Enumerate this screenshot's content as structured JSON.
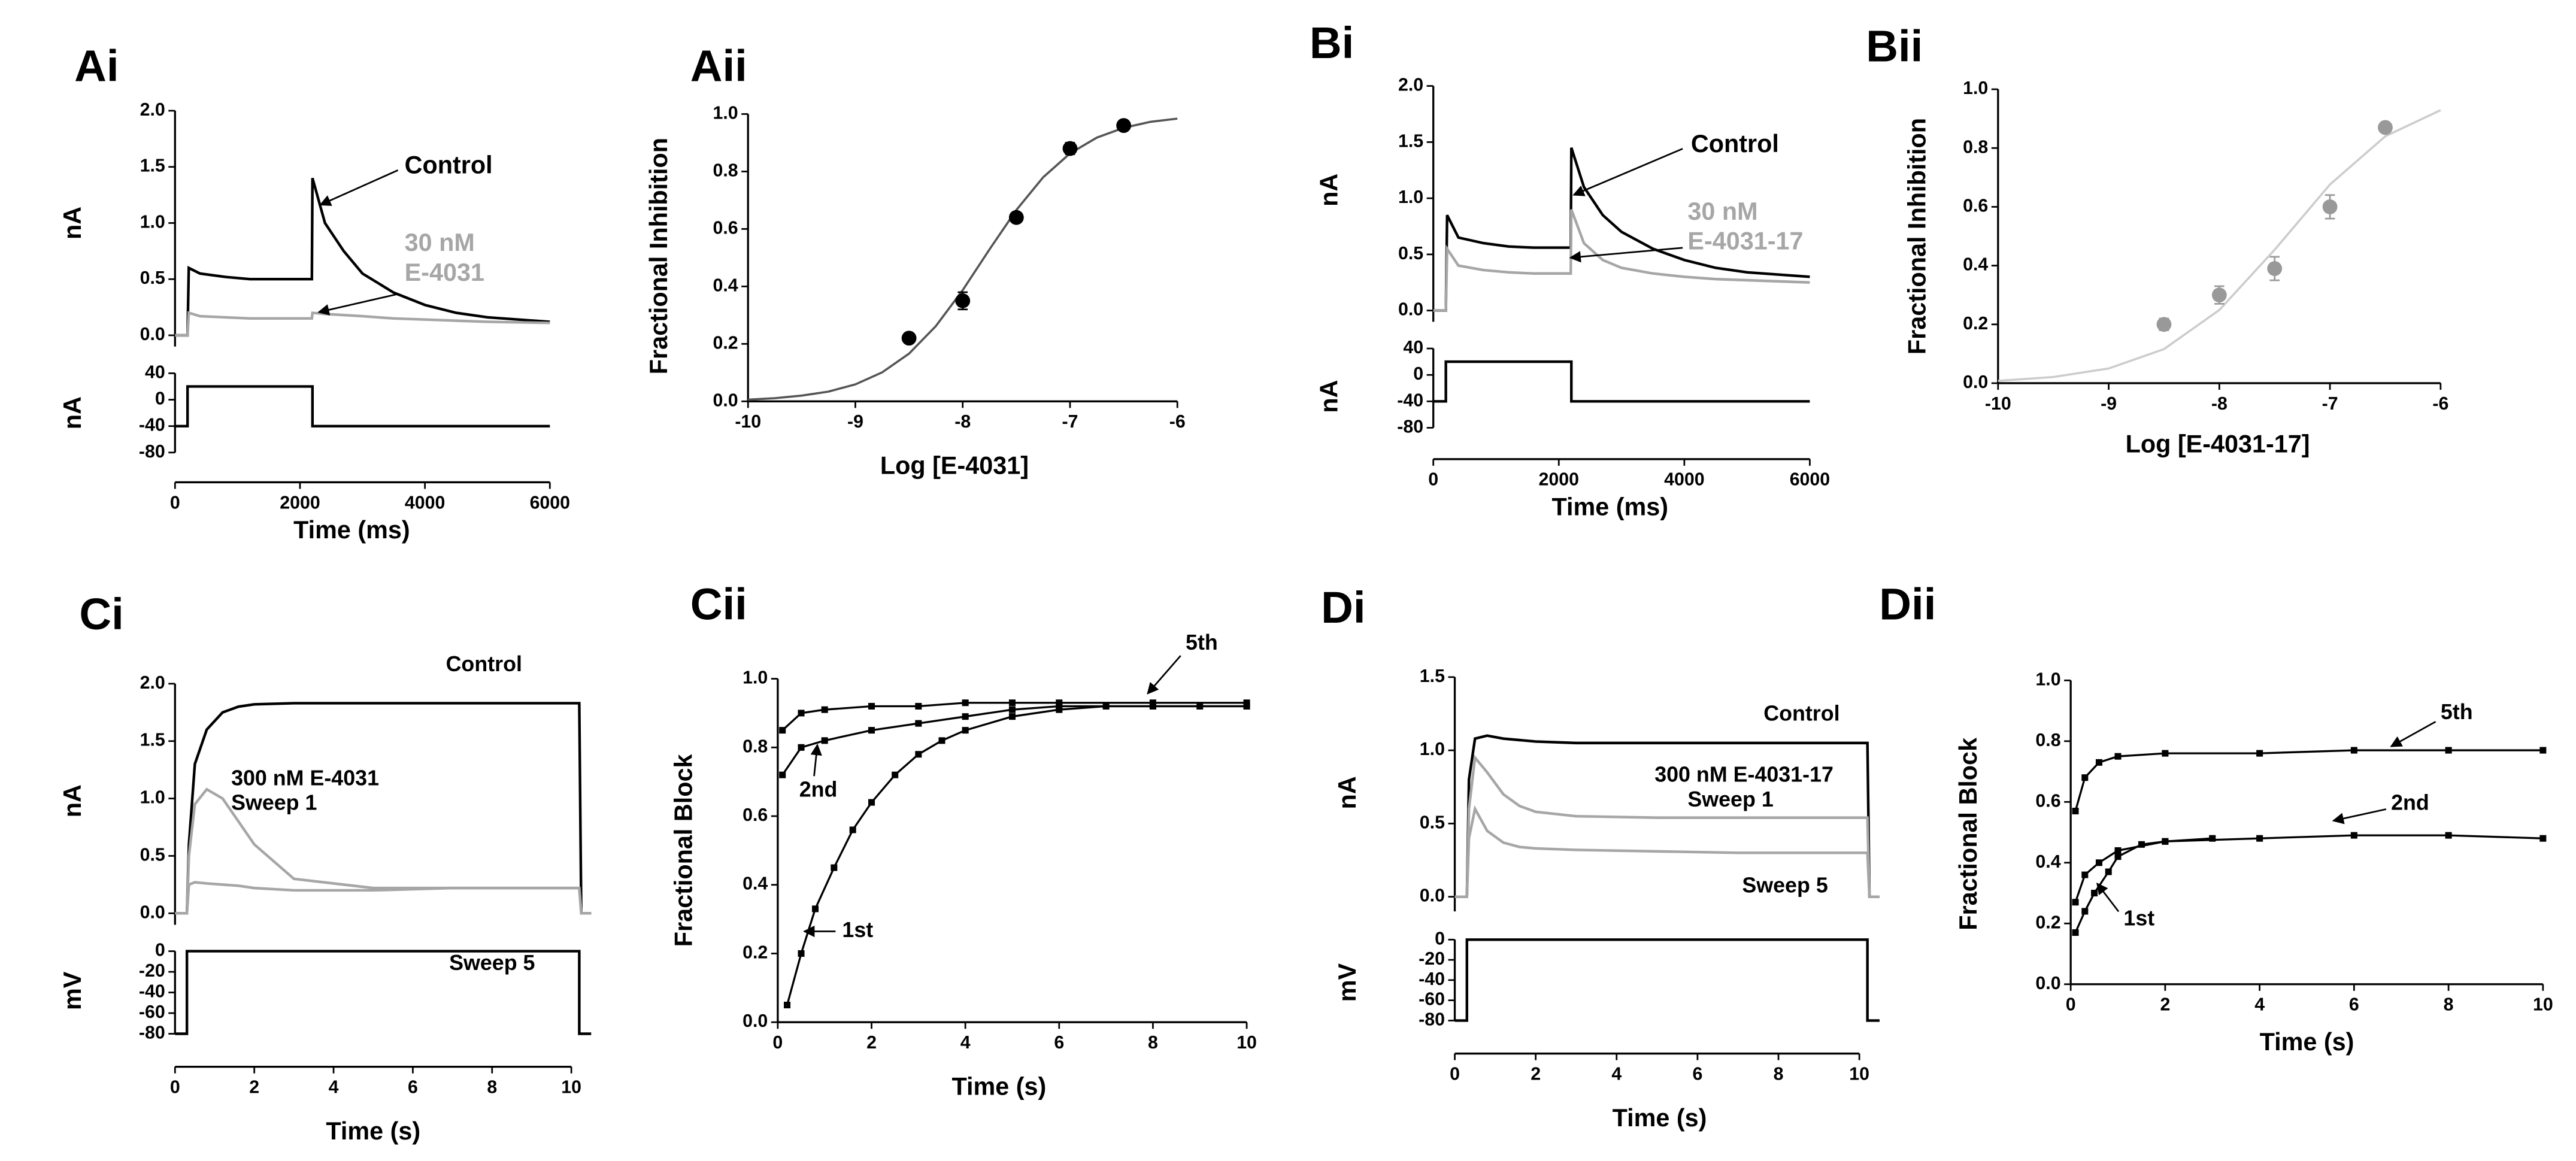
{
  "chart_data": [
    {
      "type": "line",
      "title": "Ai",
      "ylabel": "nA",
      "xlim": [
        0,
        6000
      ],
      "ylim": [
        -0.1,
        2.0
      ],
      "yticks": [
        {
          "value": 0,
          "label": "0.0"
        },
        {
          "value": 0.5,
          "label": "0.5"
        },
        {
          "value": 1,
          "label": "1.0"
        },
        {
          "value": 1.5,
          "label": "1.5"
        },
        {
          "value": 2,
          "label": "2.0"
        }
      ],
      "annotations": [
        "Control",
        "30 nM",
        "E-4031"
      ],
      "series": [
        {
          "color": "#000000",
          "x": [
            0,
            200,
            220,
            400,
            800,
            1200,
            1600,
            2000,
            2190,
            2200,
            2400,
            2700,
            3000,
            3500,
            4000,
            4500,
            5000,
            6000
          ],
          "values": [
            0,
            0,
            0.6,
            0.55,
            0.52,
            0.5,
            0.5,
            0.5,
            0.5,
            1.4,
            1.0,
            0.75,
            0.55,
            0.38,
            0.27,
            0.2,
            0.16,
            0.12
          ]
        },
        {
          "color": "#a6a6a6",
          "x": [
            0,
            200,
            220,
            400,
            800,
            1200,
            1600,
            2000,
            2190,
            2200,
            2400,
            2700,
            3000,
            3500,
            4000,
            4500,
            5000,
            6000
          ],
          "values": [
            0,
            0,
            0.2,
            0.17,
            0.16,
            0.15,
            0.15,
            0.15,
            0.15,
            0.2,
            0.19,
            0.18,
            0.17,
            0.15,
            0.14,
            0.13,
            0.12,
            0.11
          ]
        }
      ]
    },
    {
      "type": "line",
      "ylabel": "nA",
      "xlabel": "Time (ms)",
      "xlim": [
        0,
        6000
      ],
      "ylim": [
        -80,
        40
      ],
      "yticks": [
        40,
        0,
        -40,
        -80
      ],
      "xticks": [
        0,
        2000,
        4000,
        6000
      ],
      "series": [
        {
          "color": "#000000",
          "x": [
            0,
            200,
            200,
            2200,
            2200,
            6000
          ],
          "values": [
            -40,
            -40,
            20,
            20,
            -40,
            -40
          ]
        }
      ]
    },
    {
      "type": "scatter",
      "title": "Aii",
      "xlabel": "Log [E-4031]",
      "ylabel": "Fractional Inhibition",
      "xlim": [
        -10,
        -6
      ],
      "ylim": [
        0,
        1
      ],
      "xticks": [
        -10,
        -9,
        -8,
        -7,
        -6
      ],
      "yticks": [
        {
          "value": 0,
          "label": "0.0"
        },
        {
          "value": 0.2,
          "label": "0.2"
        },
        {
          "value": 0.4,
          "label": "0.4"
        },
        {
          "value": 0.6,
          "label": "0.6"
        },
        {
          "value": 0.8,
          "label": "0.8"
        },
        {
          "value": 1,
          "label": "1.0"
        }
      ],
      "color": "#000000",
      "fit_color": "#555555",
      "x": [
        -8.5,
        -8,
        -7.5,
        -7,
        -6.5
      ],
      "values": [
        0.22,
        0.35,
        0.64,
        0.88,
        0.96
      ],
      "errors": [
        0.01,
        0.03,
        0.01,
        0.02,
        0.01
      ],
      "fit": {
        "x": [
          -10,
          -9.75,
          -9.5,
          -9.25,
          -9,
          -8.75,
          -8.5,
          -8.25,
          -8,
          -7.75,
          -7.5,
          -7.25,
          -7,
          -6.75,
          -6.5,
          -6.25,
          -6
        ],
        "values": [
          0.006,
          0.011,
          0.02,
          0.034,
          0.059,
          0.101,
          0.166,
          0.262,
          0.387,
          0.529,
          0.666,
          0.78,
          0.863,
          0.918,
          0.952,
          0.973,
          0.984
        ]
      }
    },
    {
      "type": "line",
      "title": "Bi",
      "ylabel": "nA",
      "xlim": [
        0,
        6000
      ],
      "ylim": [
        -0.1,
        2.0
      ],
      "yticks": [
        {
          "value": 0,
          "label": "0.0"
        },
        {
          "value": 0.5,
          "label": "0.5"
        },
        {
          "value": 1,
          "label": "1.0"
        },
        {
          "value": 1.5,
          "label": "1.5"
        },
        {
          "value": 2,
          "label": "2.0"
        }
      ],
      "annotations": [
        "Control",
        "30 nM",
        "E-4031-17"
      ],
      "series": [
        {
          "color": "#000000",
          "x": [
            0,
            200,
            220,
            400,
            800,
            1200,
            1600,
            2000,
            2190,
            2200,
            2400,
            2700,
            3000,
            3500,
            4000,
            4500,
            5000,
            6000
          ],
          "values": [
            0,
            0,
            0.85,
            0.65,
            0.6,
            0.57,
            0.56,
            0.56,
            0.56,
            1.45,
            1.1,
            0.85,
            0.7,
            0.55,
            0.45,
            0.38,
            0.34,
            0.3
          ]
        },
        {
          "color": "#a6a6a6",
          "x": [
            0,
            200,
            220,
            400,
            800,
            1200,
            1600,
            2000,
            2190,
            2200,
            2400,
            2700,
            3000,
            3500,
            4000,
            4500,
            5000,
            6000
          ],
          "values": [
            0,
            0,
            0.55,
            0.4,
            0.36,
            0.34,
            0.33,
            0.33,
            0.33,
            0.9,
            0.6,
            0.45,
            0.38,
            0.33,
            0.3,
            0.28,
            0.27,
            0.25
          ]
        }
      ]
    },
    {
      "type": "line",
      "ylabel": "nA",
      "xlabel": "Time (ms)",
      "xlim": [
        0,
        6000
      ],
      "ylim": [
        -80,
        40
      ],
      "yticks": [
        40,
        0,
        -40,
        -80
      ],
      "xticks": [
        0,
        2000,
        4000,
        6000
      ],
      "series": [
        {
          "color": "#000000",
          "x": [
            0,
            200,
            200,
            2200,
            2200,
            6000
          ],
          "values": [
            -40,
            -40,
            20,
            20,
            -40,
            -40
          ]
        }
      ]
    },
    {
      "type": "scatter",
      "title": "Bii",
      "xlabel": "Log [E-4031-17]",
      "ylabel": "Fractional Inhibition",
      "xlim": [
        -10,
        -6
      ],
      "ylim": [
        0,
        1
      ],
      "xticks": [
        -10,
        -9,
        -8,
        -7,
        -6
      ],
      "yticks": [
        {
          "value": 0,
          "label": "0.0"
        },
        {
          "value": 0.2,
          "label": "0.2"
        },
        {
          "value": 0.4,
          "label": "0.4"
        },
        {
          "value": 0.6,
          "label": "0.6"
        },
        {
          "value": 0.8,
          "label": "0.8"
        },
        {
          "value": 1,
          "label": "1.0"
        }
      ],
      "color": "#999999",
      "fit_color": "#cccccc",
      "x": [
        -8.5,
        -8,
        -7.5,
        -7,
        -6.5
      ],
      "values": [
        0.2,
        0.3,
        0.39,
        0.6,
        0.87
      ],
      "errors": [
        0.02,
        0.03,
        0.04,
        0.04,
        0.01
      ],
      "fit": {
        "x": [
          -10,
          -9.5,
          -9,
          -8.5,
          -8,
          -7.5,
          -7,
          -6.5,
          -6
        ],
        "values": [
          0.008,
          0.021,
          0.05,
          0.116,
          0.249,
          0.454,
          0.676,
          0.84,
          0.929
        ]
      }
    },
    {
      "type": "line",
      "title": "Ci",
      "ylabel": "nA",
      "xlim": [
        0,
        10
      ],
      "ylim": [
        -0.1,
        2.0
      ],
      "yticks": [
        {
          "value": 0,
          "label": "0.0"
        },
        {
          "value": 0.5,
          "label": "0.5"
        },
        {
          "value": 1,
          "label": "1.0"
        },
        {
          "value": 1.5,
          "label": "1.5"
        },
        {
          "value": 2,
          "label": "2.0"
        }
      ],
      "annotations": [
        "Control",
        "300 nM E-4031",
        "Sweep 1",
        "Sweep 5"
      ],
      "series": [
        {
          "color": "#000000",
          "x": [
            0,
            0.3,
            0.35,
            0.5,
            0.8,
            1.2,
            1.6,
            2,
            3,
            5,
            7,
            9,
            10.2,
            10.25,
            10.5
          ],
          "values": [
            0,
            0,
            0.6,
            1.3,
            1.6,
            1.75,
            1.8,
            1.82,
            1.83,
            1.83,
            1.83,
            1.83,
            1.83,
            0,
            0
          ]
        },
        {
          "color": "#a6a6a6",
          "x": [
            0,
            0.3,
            0.35,
            0.5,
            0.8,
            1.2,
            1.6,
            2,
            3,
            5,
            7,
            9,
            10.2,
            10.25,
            10.5
          ],
          "values": [
            0,
            0,
            0.5,
            0.95,
            1.08,
            1.0,
            0.8,
            0.6,
            0.3,
            0.22,
            0.22,
            0.22,
            0.22,
            0,
            0
          ]
        },
        {
          "color": "#a6a6a6",
          "x": [
            0,
            0.3,
            0.35,
            0.5,
            0.8,
            1.2,
            1.6,
            2,
            3,
            5,
            7,
            9,
            10.2,
            10.25,
            10.5
          ],
          "values": [
            0,
            0,
            0.25,
            0.27,
            0.26,
            0.25,
            0.24,
            0.22,
            0.2,
            0.2,
            0.22,
            0.22,
            0.22,
            0,
            0
          ]
        }
      ]
    },
    {
      "type": "line",
      "ylabel": "mV",
      "xlabel": "Time (s)",
      "xlim": [
        0,
        10
      ],
      "ylim": [
        -80,
        0
      ],
      "yticks": [
        0,
        -20,
        -40,
        -60,
        -80
      ],
      "xticks": [
        0,
        2,
        4,
        6,
        8,
        10
      ],
      "series": [
        {
          "color": "#000000",
          "x": [
            0,
            0.3,
            0.3,
            10.2,
            10.2,
            10.5
          ],
          "values": [
            -80,
            -80,
            0,
            0,
            -80,
            -80
          ]
        }
      ]
    },
    {
      "type": "line",
      "markers": true,
      "title": "Cii",
      "xlabel": "Time (s)",
      "ylabel": "Fractional Block",
      "xlim": [
        0,
        10
      ],
      "ylim": [
        0,
        1
      ],
      "xticks": [
        0,
        2,
        4,
        6,
        8,
        10
      ],
      "yticks": [
        {
          "value": 0,
          "label": "0.0"
        },
        {
          "value": 0.2,
          "label": "0.2"
        },
        {
          "value": 0.4,
          "label": "0.4"
        },
        {
          "value": 0.6,
          "label": "0.6"
        },
        {
          "value": 0.8,
          "label": "0.8"
        },
        {
          "value": 1,
          "label": "1.0"
        }
      ],
      "series": [
        {
          "name": "5th",
          "color": "#000000",
          "x": [
            0.1,
            0.5,
            1,
            2,
            3,
            4,
            5,
            6,
            8,
            10
          ],
          "values": [
            0.85,
            0.9,
            0.91,
            0.92,
            0.92,
            0.93,
            0.93,
            0.93,
            0.93,
            0.93
          ]
        },
        {
          "name": "2nd",
          "color": "#000000",
          "x": [
            0.1,
            0.5,
            1,
            2,
            3,
            4,
            5,
            6,
            8,
            10
          ],
          "values": [
            0.72,
            0.8,
            0.82,
            0.85,
            0.87,
            0.89,
            0.91,
            0.92,
            0.92,
            0.92
          ]
        },
        {
          "name": "1st",
          "color": "#000000",
          "x": [
            0.2,
            0.5,
            0.8,
            1.2,
            1.6,
            2,
            2.5,
            3,
            3.5,
            4,
            5,
            6,
            7,
            8,
            9,
            10
          ],
          "values": [
            0.05,
            0.2,
            0.33,
            0.45,
            0.56,
            0.64,
            0.72,
            0.78,
            0.82,
            0.85,
            0.89,
            0.91,
            0.92,
            0.92,
            0.92,
            0.92
          ]
        }
      ]
    },
    {
      "type": "line",
      "title": "Di",
      "ylabel": "nA",
      "xlim": [
        0,
        10
      ],
      "ylim": [
        -0.1,
        1.5
      ],
      "yticks": [
        {
          "value": 0,
          "label": "0.0"
        },
        {
          "value": 0.5,
          "label": "0.5"
        },
        {
          "value": 1,
          "label": "1.0"
        },
        {
          "value": 1.5,
          "label": "1.5"
        }
      ],
      "annotations": [
        "Control",
        "300 nM E-4031-17",
        "Sweep 1",
        "Sweep 5"
      ],
      "series": [
        {
          "color": "#000000",
          "x": [
            0,
            0.3,
            0.35,
            0.5,
            0.8,
            1.2,
            1.6,
            2,
            3,
            5,
            7,
            9,
            10.2,
            10.25,
            10.5
          ],
          "values": [
            0,
            0,
            0.8,
            1.08,
            1.1,
            1.08,
            1.07,
            1.06,
            1.05,
            1.05,
            1.05,
            1.05,
            1.05,
            0,
            0
          ]
        },
        {
          "color": "#a6a6a6",
          "x": [
            0,
            0.3,
            0.35,
            0.5,
            0.8,
            1.2,
            1.6,
            2,
            3,
            5,
            7,
            9,
            10.2,
            10.25,
            10.5
          ],
          "values": [
            0,
            0,
            0.6,
            0.95,
            0.85,
            0.7,
            0.62,
            0.58,
            0.55,
            0.54,
            0.54,
            0.54,
            0.54,
            0,
            0
          ]
        },
        {
          "color": "#a6a6a6",
          "x": [
            0,
            0.3,
            0.35,
            0.5,
            0.8,
            1.2,
            1.6,
            2,
            3,
            5,
            7,
            9,
            10.2,
            10.25,
            10.5
          ],
          "values": [
            0,
            0,
            0.4,
            0.6,
            0.45,
            0.37,
            0.34,
            0.33,
            0.32,
            0.31,
            0.3,
            0.3,
            0.3,
            0,
            0
          ]
        }
      ]
    },
    {
      "type": "line",
      "ylabel": "mV",
      "xlabel": "Time (s)",
      "xlim": [
        0,
        10
      ],
      "ylim": [
        -80,
        0
      ],
      "yticks": [
        0,
        -20,
        -40,
        -60,
        -80
      ],
      "xticks": [
        0,
        2,
        4,
        6,
        8,
        10
      ],
      "series": [
        {
          "color": "#000000",
          "x": [
            0,
            0.3,
            0.3,
            10.2,
            10.2,
            10.5
          ],
          "values": [
            -80,
            -80,
            0,
            0,
            -80,
            -80
          ]
        }
      ]
    },
    {
      "type": "line",
      "markers": true,
      "title": "Dii",
      "xlabel": "Time (s)",
      "ylabel": "Fractional Block",
      "xlim": [
        0,
        10
      ],
      "ylim": [
        0,
        1
      ],
      "xticks": [
        0,
        2,
        4,
        6,
        8,
        10
      ],
      "yticks": [
        {
          "value": 0,
          "label": "0.0"
        },
        {
          "value": 0.2,
          "label": "0.2"
        },
        {
          "value": 0.4,
          "label": "0.4"
        },
        {
          "value": 0.6,
          "label": "0.6"
        },
        {
          "value": 0.8,
          "label": "0.8"
        },
        {
          "value": 1,
          "label": "1.0"
        }
      ],
      "series": [
        {
          "name": "5th",
          "color": "#000000",
          "x": [
            0.1,
            0.3,
            0.6,
            1,
            2,
            4,
            6,
            8,
            10
          ],
          "values": [
            0.57,
            0.68,
            0.73,
            0.75,
            0.76,
            0.76,
            0.77,
            0.77,
            0.77
          ]
        },
        {
          "name": "2nd",
          "color": "#000000",
          "x": [
            0.1,
            0.3,
            0.6,
            1,
            2,
            4,
            6,
            8,
            10
          ],
          "values": [
            0.27,
            0.36,
            0.4,
            0.44,
            0.47,
            0.48,
            0.49,
            0.49,
            0.48
          ]
        },
        {
          "name": "1st",
          "color": "#000000",
          "x": [
            0.1,
            0.3,
            0.5,
            0.8,
            1,
            1.5,
            2,
            3
          ],
          "values": [
            0.17,
            0.24,
            0.3,
            0.37,
            0.42,
            0.46,
            0.47,
            0.48
          ]
        }
      ]
    }
  ]
}
